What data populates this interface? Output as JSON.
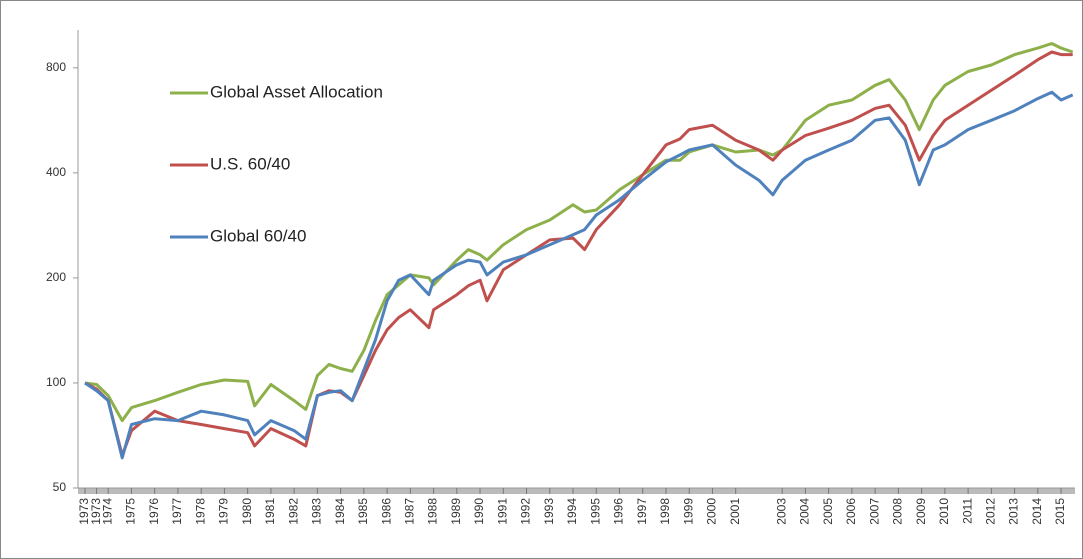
{
  "chart_data": {
    "type": "line",
    "log_scale_y": true,
    "grid": false,
    "legend_position": "upper left",
    "x": [
      1973,
      1973.5,
      1974,
      1974.6,
      1975,
      1976,
      1977,
      1978,
      1979,
      1980,
      1980.3,
      1981,
      1982,
      1982.5,
      1983,
      1983.5,
      1984,
      1984.5,
      1985,
      1985.5,
      1986,
      1986.5,
      1987,
      1987.8,
      1988,
      1989,
      1989.5,
      1990,
      1990.3,
      1991,
      1992,
      1993,
      1994,
      1994.5,
      1995,
      1996,
      1997,
      1998,
      1998.6,
      1999,
      2000,
      2001,
      2002,
      2002.6,
      2003,
      2004,
      2005,
      2006,
      2007,
      2007.6,
      2008.3,
      2008.9,
      2009.5,
      2010,
      2011,
      2012,
      2013,
      2014,
      2014.6,
      2015,
      2015.5
    ],
    "series": [
      {
        "name": "Global Asset Allocation",
        "color": "#8db04a",
        "values": [
          100,
          99,
          92,
          78,
          85,
          89,
          94,
          99,
          102,
          101,
          86,
          99,
          89,
          84,
          105,
          113,
          110,
          108,
          124,
          151,
          179,
          191,
          204,
          200,
          191,
          225,
          241,
          233,
          225,
          249,
          275,
          293,
          324,
          309,
          313,
          358,
          395,
          435,
          435,
          459,
          481,
          459,
          465,
          450,
          465,
          566,
          625,
          647,
          713,
          740,
          647,
          532,
          647,
          713,
          781,
          815,
          873,
          911,
          939,
          911,
          888
        ]
      },
      {
        "name": "U.S. 60/40",
        "color": "#c0504d",
        "values": [
          100,
          96,
          89,
          62,
          73,
          83,
          78,
          76,
          74,
          72,
          66,
          74,
          69,
          66,
          92,
          95,
          94,
          89,
          105,
          124,
          142,
          154,
          162,
          144,
          162,
          179,
          190,
          197,
          172,
          211,
          233,
          257,
          260,
          241,
          275,
          324,
          395,
          481,
          500,
          532,
          548,
          496,
          465,
          435,
          465,
          512,
          537,
          566,
          612,
          625,
          548,
          435,
          512,
          566,
          625,
          690,
          762,
          844,
          888,
          873,
          873
        ]
      },
      {
        "name": "Global 60/40",
        "color": "#4f81bd",
        "values": [
          100,
          95,
          89,
          61,
          76,
          79,
          78,
          83,
          81,
          78,
          71,
          78,
          73,
          69,
          92,
          94,
          95,
          89,
          109,
          133,
          172,
          197,
          204,
          179,
          197,
          218,
          225,
          222,
          204,
          222,
          233,
          249,
          266,
          275,
          303,
          335,
          381,
          430,
          450,
          465,
          481,
          421,
          381,
          346,
          381,
          435,
          465,
          496,
          566,
          575,
          496,
          370,
          465,
          481,
          532,
          566,
          603,
          653,
          681,
          647,
          669
        ]
      }
    ],
    "xlim": [
      1972.7,
      2015.6
    ],
    "xticks": [
      {
        "value": 1973,
        "label": "1973"
      },
      {
        "value": 1973.5,
        "label": "1973"
      },
      {
        "value": 1974,
        "label": "1974"
      },
      {
        "value": 1975,
        "label": "1975"
      },
      {
        "value": 1976,
        "label": "1976"
      },
      {
        "value": 1977,
        "label": "1977"
      },
      {
        "value": 1978,
        "label": "1978"
      },
      {
        "value": 1979,
        "label": "1979"
      },
      {
        "value": 1980,
        "label": "1980"
      },
      {
        "value": 1981,
        "label": "1981"
      },
      {
        "value": 1982,
        "label": "1982"
      },
      {
        "value": 1983,
        "label": "1983"
      },
      {
        "value": 1984,
        "label": "1984"
      },
      {
        "value": 1985,
        "label": "1985"
      },
      {
        "value": 1986,
        "label": "1986"
      },
      {
        "value": 1987,
        "label": "1987"
      },
      {
        "value": 1988,
        "label": "1988"
      },
      {
        "value": 1989,
        "label": "1989"
      },
      {
        "value": 1990,
        "label": "1990"
      },
      {
        "value": 1991,
        "label": "1991"
      },
      {
        "value": 1992,
        "label": "1992"
      },
      {
        "value": 1993,
        "label": "1993"
      },
      {
        "value": 1994,
        "label": "1994"
      },
      {
        "value": 1995,
        "label": "1995"
      },
      {
        "value": 1996,
        "label": "1996"
      },
      {
        "value": 1997,
        "label": "1997"
      },
      {
        "value": 1998,
        "label": "1998"
      },
      {
        "value": 1999,
        "label": "1999"
      },
      {
        "value": 2000,
        "label": "2000"
      },
      {
        "value": 2001,
        "label": "2001"
      },
      {
        "value": 2003,
        "label": "2003"
      },
      {
        "value": 2004,
        "label": "2004"
      },
      {
        "value": 2005,
        "label": "2005"
      },
      {
        "value": 2006,
        "label": "2006"
      },
      {
        "value": 2007,
        "label": "2007"
      },
      {
        "value": 2008,
        "label": "2008"
      },
      {
        "value": 2009,
        "label": "2009"
      },
      {
        "value": 2010,
        "label": "2010"
      },
      {
        "value": 2011,
        "label": "2011"
      },
      {
        "value": 2012,
        "label": "2012"
      },
      {
        "value": 2013,
        "label": "2013"
      },
      {
        "value": 2014,
        "label": "2014"
      },
      {
        "value": 2015,
        "label": "2015"
      }
    ],
    "ylim": [
      50,
      1000
    ],
    "yticks": [
      50,
      100,
      200,
      400,
      800
    ]
  }
}
